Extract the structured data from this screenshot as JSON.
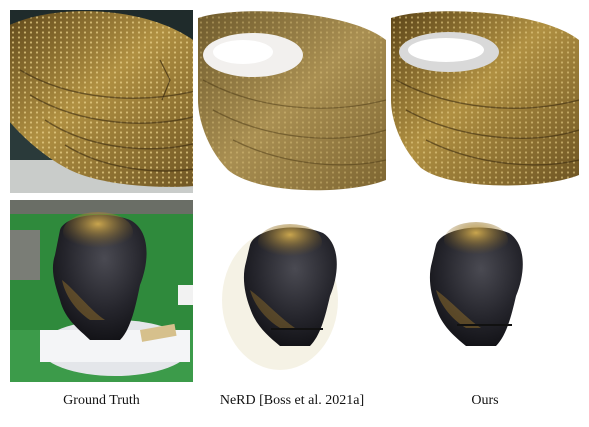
{
  "figure": {
    "columns": [
      {
        "caption": "Ground Truth"
      },
      {
        "caption": "NeRD [Boss et al. 2021a]"
      },
      {
        "caption": "Ours"
      }
    ],
    "rows": [
      {
        "subject": "gold-cape"
      },
      {
        "subject": "gilded-head"
      }
    ]
  },
  "colors": {
    "gold_dark": "#6e5522",
    "gold_mid": "#a8883e",
    "gold_light": "#d9c07a",
    "head_dark": "#1c1c22",
    "field_green": "#2f8a3c",
    "background": "#ffffff"
  }
}
